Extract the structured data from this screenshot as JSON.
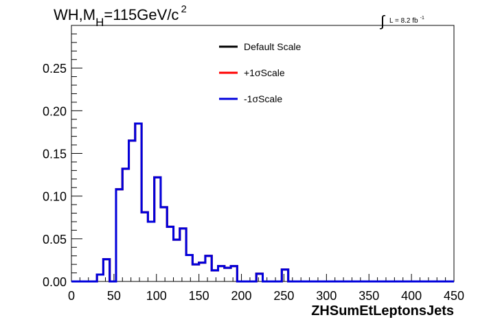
{
  "title_parts": {
    "main": "WH,M",
    "sub": "H",
    "rest": "=115GeV/c",
    "sup": "2"
  },
  "lumi_parts": {
    "integral": "∫",
    "text": "L = 8.2 fb",
    "sup": "-1"
  },
  "chart_data": {
    "type": "line",
    "title": "WH,M_H=115GeV/c^2",
    "xlabel": "ZHSumEtLeptonsJets",
    "ylabel": "",
    "xlim": [
      0,
      450
    ],
    "ylim": [
      0,
      0.3
    ],
    "x_ticks": [
      "0",
      "50",
      "100",
      "150",
      "200",
      "250",
      "300",
      "350",
      "400",
      "450"
    ],
    "y_ticks": [
      "0.00",
      "0.05",
      "0.10",
      "0.15",
      "0.20",
      "0.25"
    ],
    "grid": false,
    "legend_position": "top-center",
    "bin_width": 7.5,
    "bin_edges_start": 0,
    "series": [
      {
        "name": "Default Scale",
        "color": "#000000",
        "values": [
          0,
          0,
          0,
          0,
          0.008,
          0.026,
          0,
          0.108,
          0.132,
          0.165,
          0.185,
          0.081,
          0.07,
          0.122,
          0.087,
          0.064,
          0.049,
          0.062,
          0.031,
          0.02,
          0.022,
          0.03,
          0.013,
          0.018,
          0.016,
          0.018,
          0,
          0,
          0,
          0.009,
          0,
          0,
          0,
          0.014,
          0,
          0,
          0,
          0,
          0,
          0,
          0,
          0,
          0,
          0,
          0,
          0,
          0,
          0,
          0,
          0,
          0,
          0,
          0,
          0,
          0,
          0,
          0,
          0,
          0,
          0
        ]
      },
      {
        "name": "+1σScale",
        "color": "#ff0000",
        "values": [
          0,
          0,
          0,
          0,
          0.008,
          0.026,
          0,
          0.108,
          0.132,
          0.165,
          0.185,
          0.081,
          0.07,
          0.122,
          0.087,
          0.064,
          0.049,
          0.062,
          0.031,
          0.02,
          0.022,
          0.03,
          0.013,
          0.018,
          0.016,
          0.018,
          0,
          0,
          0,
          0.009,
          0,
          0,
          0,
          0.014,
          0,
          0,
          0,
          0,
          0,
          0,
          0,
          0,
          0,
          0,
          0,
          0,
          0,
          0,
          0,
          0,
          0,
          0,
          0,
          0,
          0,
          0,
          0,
          0,
          0,
          0
        ]
      },
      {
        "name": "-1σScale",
        "color": "#0000dd",
        "values": [
          0,
          0,
          0,
          0,
          0.008,
          0.026,
          0,
          0.108,
          0.132,
          0.165,
          0.185,
          0.081,
          0.07,
          0.122,
          0.087,
          0.064,
          0.049,
          0.062,
          0.031,
          0.02,
          0.022,
          0.03,
          0.013,
          0.018,
          0.016,
          0.018,
          0,
          0,
          0,
          0.009,
          0,
          0,
          0,
          0.014,
          0,
          0,
          0,
          0,
          0,
          0,
          0,
          0,
          0,
          0,
          0,
          0,
          0,
          0,
          0,
          0,
          0,
          0,
          0,
          0,
          0,
          0,
          0,
          0,
          0,
          0
        ]
      }
    ]
  }
}
